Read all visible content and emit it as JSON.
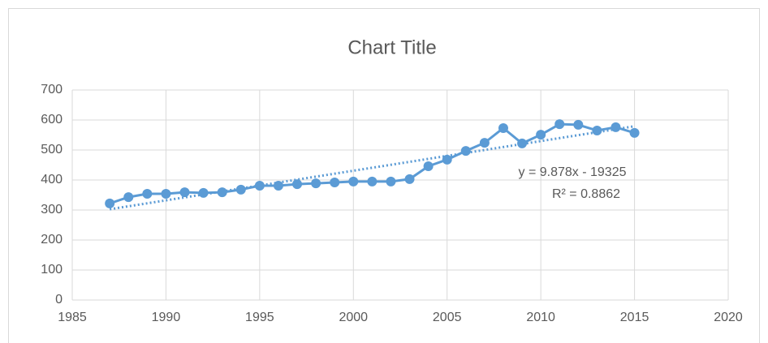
{
  "chart_data": {
    "type": "scatter",
    "title": "Chart Title",
    "x": [
      1987,
      1988,
      1989,
      1990,
      1991,
      1992,
      1993,
      1994,
      1995,
      1996,
      1997,
      1998,
      1999,
      2000,
      2001,
      2002,
      2003,
      2004,
      2005,
      2006,
      2007,
      2008,
      2009,
      2010,
      2011,
      2012,
      2013,
      2014,
      2015
    ],
    "series": [
      {
        "color": "#5b9bd5",
        "values": [
          322,
          343,
          354,
          354,
          359,
          357,
          359,
          368,
          381,
          381,
          386,
          389,
          392,
          395,
          395,
          395,
          403,
          446,
          468,
          497,
          524,
          573,
          522,
          551,
          586,
          584,
          565,
          576,
          557
        ]
      }
    ],
    "trendline": {
      "slope": 9.878,
      "intercept": -19325,
      "equation": "y = 9.878x - 19325",
      "r_squared": "R² = 0.8862",
      "color": "#5b9bd5"
    },
    "xlim": [
      1985,
      2020
    ],
    "xticks": [
      1985,
      1990,
      1995,
      2000,
      2005,
      2010,
      2015,
      2020
    ],
    "ylim": [
      0,
      700
    ],
    "yticks": [
      0,
      100,
      200,
      300,
      400,
      500,
      600,
      700
    ],
    "grid": true
  }
}
